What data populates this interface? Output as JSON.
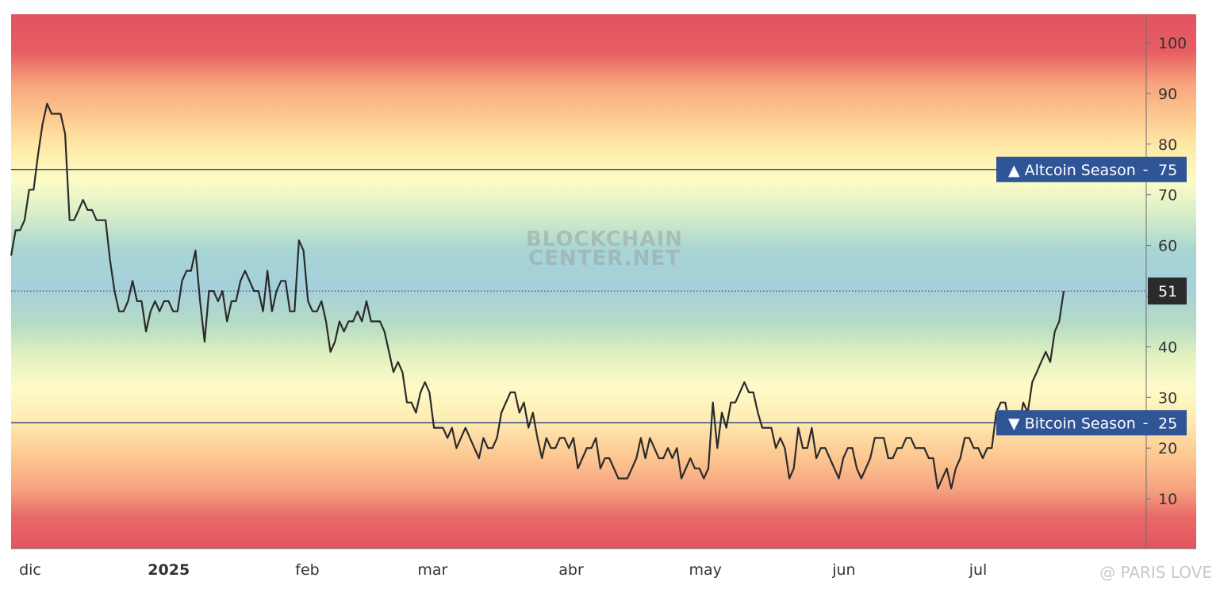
{
  "chart_data": {
    "type": "line",
    "title": "",
    "xlabel": "",
    "ylabel": "",
    "ylim": [
      0,
      105
    ],
    "yticks": [
      10,
      20,
      30,
      40,
      50,
      60,
      70,
      80,
      90,
      100
    ],
    "x_start": "2024-12-01",
    "x_end": "2025-07-26",
    "x_month_labels": [
      {
        "label": "dic",
        "date": "2024-12-01",
        "bold": false
      },
      {
        "label": "2025",
        "date": "2025-01-01",
        "bold": true
      },
      {
        "label": "feb",
        "date": "2025-02-01",
        "bold": false
      },
      {
        "label": "mar",
        "date": "2025-03-01",
        "bold": false
      },
      {
        "label": "abr",
        "date": "2025-04-01",
        "bold": false
      },
      {
        "label": "may",
        "date": "2025-05-01",
        "bold": false
      },
      {
        "label": "jun",
        "date": "2025-06-01",
        "bold": false
      },
      {
        "label": "jul",
        "date": "2025-07-01",
        "bold": false
      }
    ],
    "series": [
      {
        "values": [
          58,
          63,
          63,
          65,
          71,
          71,
          78,
          84,
          88,
          86,
          86,
          86,
          82,
          65,
          65,
          67,
          69,
          67,
          67,
          65,
          65,
          65,
          57,
          51,
          47,
          47,
          49,
          53,
          49,
          49,
          43,
          47,
          49,
          47,
          49,
          49,
          47,
          47,
          53,
          55,
          55,
          59,
          49,
          41,
          51,
          51,
          49,
          51,
          45,
          49,
          49,
          53,
          55,
          53,
          51,
          51,
          47,
          55,
          47,
          51,
          53,
          53,
          47,
          47,
          61,
          59,
          49,
          47,
          47,
          49,
          45,
          39,
          41,
          45,
          43,
          45,
          45,
          47,
          45,
          49,
          45,
          45,
          45,
          43,
          39,
          35,
          37,
          35,
          29,
          29,
          27,
          31,
          33,
          31,
          24,
          24,
          24,
          22,
          24,
          20,
          22,
          24,
          22,
          20,
          18,
          22,
          20,
          20,
          22,
          27,
          29,
          31,
          31,
          27,
          29,
          24,
          27,
          22,
          18,
          22,
          20,
          20,
          22,
          22,
          20,
          22,
          16,
          18,
          20,
          20,
          22,
          16,
          18,
          18,
          16,
          14,
          14,
          14,
          16,
          18,
          22,
          18,
          22,
          20,
          18,
          18,
          20,
          18,
          20,
          14,
          16,
          18,
          16,
          16,
          14,
          16,
          29,
          20,
          27,
          24,
          29,
          29,
          31,
          33,
          31,
          31,
          27,
          24,
          24,
          24,
          20,
          22,
          20,
          14,
          16,
          24,
          20,
          20,
          24,
          18,
          20,
          20,
          18,
          16,
          14,
          18,
          20,
          20,
          16,
          14,
          16,
          18,
          22,
          22,
          22,
          18,
          18,
          20,
          20,
          22,
          22,
          20,
          20,
          20,
          18,
          18,
          12,
          14,
          16,
          12,
          16,
          18,
          22,
          22,
          20,
          20,
          18,
          20,
          20,
          27,
          29,
          29,
          24,
          27,
          24,
          29,
          27,
          33,
          35,
          37,
          39,
          37,
          43,
          45,
          51
        ]
      }
    ],
    "reference_lines": [
      {
        "name": "Altcoin Season",
        "value": 75,
        "label": "▲ Altcoin Season",
        "value_label": "75"
      },
      {
        "name": "Bitcoin Season",
        "value": 25,
        "label": "▼ Bitcoin Season",
        "value_label": "25"
      }
    ],
    "current_value_label": "51",
    "current_value": 51,
    "watermark_lines": [
      "BLOCKCHAIN",
      "CENTER.NET"
    ],
    "credit": "@ PARIS LOVE",
    "colors": {
      "line": "#2b2b2b",
      "ref_line": "#2f4f86",
      "tag_bg": "#2f5596",
      "current_tag_bg": "#2b2b2b",
      "axis": "#555555"
    }
  }
}
